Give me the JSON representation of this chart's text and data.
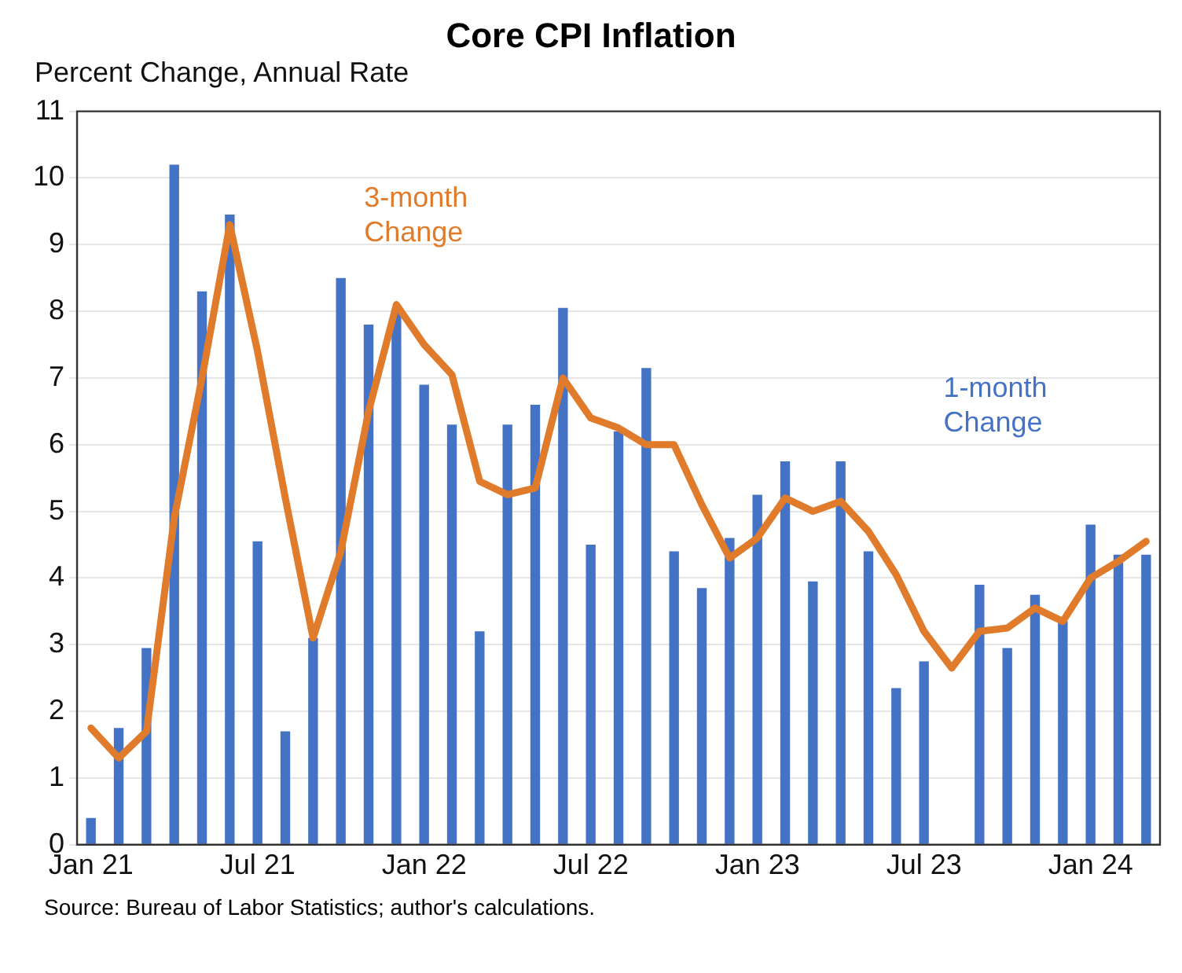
{
  "chart_data": {
    "type": "bar",
    "title": "Core CPI Inflation",
    "ylabel": "Percent Change, Annual Rate",
    "categories": [
      "Jan 21",
      null,
      null,
      null,
      null,
      null,
      "Jul 21",
      null,
      null,
      null,
      null,
      null,
      "Jan 22",
      null,
      null,
      null,
      null,
      null,
      "Jul 22",
      null,
      null,
      null,
      null,
      null,
      "Jan 23",
      null,
      null,
      null,
      null,
      null,
      "Jul 23",
      null,
      null,
      null,
      null,
      null,
      "Jan 24",
      null,
      null
    ],
    "series": [
      {
        "name": "1-month Change",
        "color": "#4472c4",
        "values": [
          0.4,
          1.75,
          2.95,
          10.2,
          8.3,
          9.45,
          4.55,
          1.7,
          3.1,
          8.5,
          7.8,
          8.0,
          6.9,
          6.3,
          3.2,
          6.3,
          6.6,
          8.05,
          4.5,
          6.2,
          7.15,
          4.4,
          3.85,
          4.6,
          5.25,
          5.75,
          3.95,
          5.75,
          4.4,
          2.35,
          2.75,
          null,
          3.9,
          2.95,
          3.75,
          3.35,
          4.8,
          4.35,
          4.35
        ]
      },
      {
        "name": "3-month Change",
        "type": "line",
        "color": "#e07b2b",
        "values": [
          1.75,
          1.3,
          1.7,
          4.9,
          7.0,
          9.3,
          7.4,
          5.2,
          3.1,
          4.4,
          6.5,
          8.1,
          7.5,
          7.05,
          5.45,
          5.25,
          5.35,
          7.0,
          6.4,
          6.25,
          6.0,
          6.0,
          5.1,
          4.3,
          4.6,
          5.2,
          5.0,
          5.15,
          4.7,
          4.05,
          3.2,
          2.65,
          3.2,
          3.25,
          3.55,
          3.35,
          4.0,
          4.25,
          4.55
        ]
      }
    ],
    "ylim": [
      0,
      11
    ],
    "yticks": [
      0,
      1,
      2,
      3,
      4,
      5,
      6,
      7,
      8,
      9,
      10,
      11
    ],
    "grid": "y",
    "legend": false,
    "marker": "none",
    "line_style": "solid",
    "annotations": [
      "Source: Bureau of Labor Statistics; author's calculations."
    ]
  }
}
